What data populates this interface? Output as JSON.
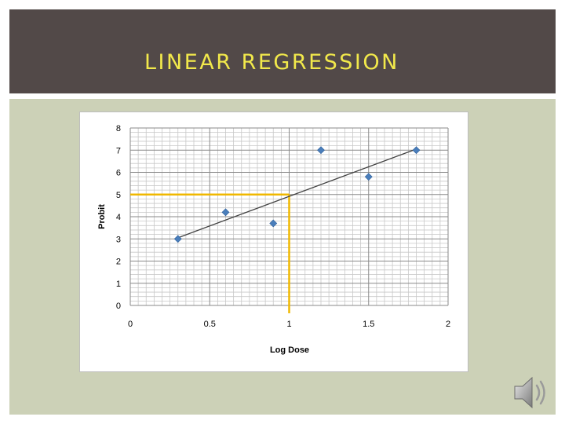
{
  "slide": {
    "title": "LINEAR REGRESSION"
  },
  "colors": {
    "title_bar": "#524948",
    "title_text": "#f2e94b",
    "content_bg": "#ccd1b7",
    "marker": "#4a7ebb",
    "trendline": "#404040",
    "reference_line": "#f0b800"
  },
  "icons": {
    "audio": "speaker-icon"
  },
  "chart_data": {
    "type": "scatter",
    "title": "",
    "xlabel": "Log Dose",
    "ylabel": "Probit",
    "xlim": [
      0,
      2
    ],
    "ylim": [
      0,
      8
    ],
    "x_ticks": [
      0,
      0.5,
      1,
      1.5,
      2
    ],
    "x_tick_labels": [
      "0",
      "0.5",
      "1",
      "1.5",
      "2"
    ],
    "y_ticks": [
      0,
      1,
      2,
      3,
      4,
      5,
      6,
      7,
      8
    ],
    "y_tick_labels": [
      "0",
      "1",
      "2",
      "3",
      "4",
      "5",
      "6",
      "7",
      "8"
    ],
    "grid": true,
    "legend": "none",
    "series": [
      {
        "points": [
          {
            "x": 0.3,
            "y": 3.0
          },
          {
            "x": 0.6,
            "y": 4.2
          },
          {
            "x": 0.9,
            "y": 3.7
          },
          {
            "x": 1.2,
            "y": 7.0
          },
          {
            "x": 1.5,
            "y": 5.8
          },
          {
            "x": 1.8,
            "y": 7.0
          }
        ]
      }
    ],
    "trendline": {
      "x": [
        0.3,
        1.8
      ],
      "y": [
        3.05,
        7.05
      ]
    },
    "reference_lines": {
      "x": 1.0,
      "y": 5.0
    }
  }
}
